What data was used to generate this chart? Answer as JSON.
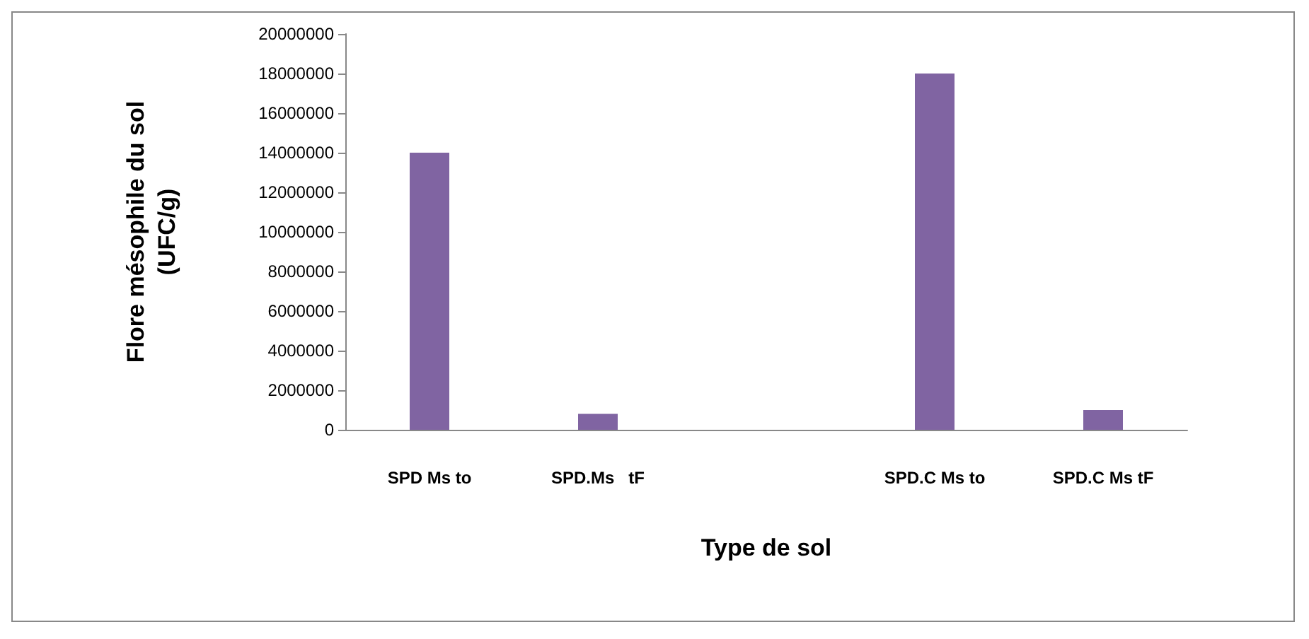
{
  "chart_data": {
    "type": "bar",
    "xlabel": "Type de sol",
    "ylabel": "Flore mésophile du sol\n(UFC/g)",
    "categories": [
      "SPD Ms to",
      "SPD.Ms   tF",
      null,
      "SPD.C Ms to",
      "SPD.C Ms tF"
    ],
    "values": [
      14000000,
      800000,
      null,
      18000000,
      1000000
    ],
    "color": "#8064a2",
    "ylim": [
      0,
      20000000
    ],
    "yticks": [
      0,
      2000000,
      4000000,
      6000000,
      8000000,
      10000000,
      12000000,
      14000000,
      16000000,
      18000000,
      20000000
    ],
    "grid": false
  }
}
